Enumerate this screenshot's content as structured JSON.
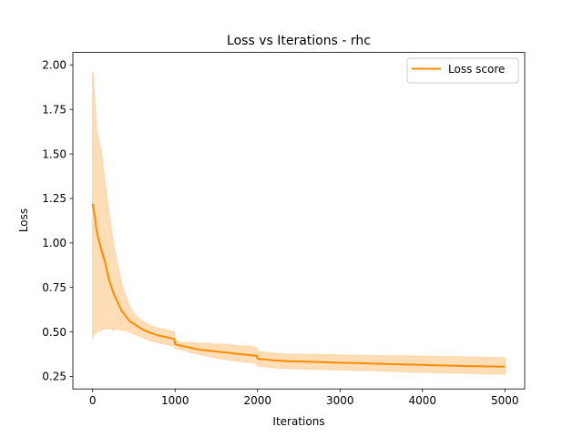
{
  "chart_data": {
    "type": "line",
    "title": "Loss vs Iterations - rhc",
    "xlabel": "Iterations",
    "ylabel": "Loss",
    "xlim": [
      -240,
      5240
    ],
    "ylim": [
      0.18,
      2.07
    ],
    "xticks": [
      0,
      1000,
      2000,
      3000,
      4000,
      5000
    ],
    "yticks": [
      0.25,
      0.5,
      0.75,
      1.0,
      1.25,
      1.5,
      1.75,
      2.0
    ],
    "grid": false,
    "legend_position": "top-right",
    "series": [
      {
        "name": "Loss score",
        "color": "#ff8c00",
        "band_color": "#ffd9ae",
        "x": [
          0,
          25,
          50,
          100,
          150,
          200,
          250,
          300,
          350,
          400,
          450,
          500,
          600,
          700,
          800,
          900,
          990,
          1000,
          1100,
          1200,
          1300,
          1400,
          1500,
          1600,
          1700,
          1800,
          1900,
          1990,
          2000,
          2100,
          2200,
          2400,
          2600,
          2800,
          3000,
          3200,
          3400,
          3600,
          3800,
          4000,
          4200,
          4400,
          4600,
          4800,
          5000
        ],
        "values": [
          1.22,
          1.15,
          1.06,
          0.97,
          0.89,
          0.79,
          0.72,
          0.67,
          0.62,
          0.59,
          0.56,
          0.545,
          0.515,
          0.495,
          0.48,
          0.47,
          0.46,
          0.43,
          0.42,
          0.41,
          0.4,
          0.395,
          0.39,
          0.385,
          0.38,
          0.375,
          0.37,
          0.365,
          0.35,
          0.345,
          0.34,
          0.335,
          0.333,
          0.33,
          0.327,
          0.325,
          0.322,
          0.32,
          0.317,
          0.315,
          0.312,
          0.31,
          0.308,
          0.306,
          0.305
        ],
        "band_upper": [
          1.96,
          1.8,
          1.62,
          1.52,
          1.33,
          1.16,
          0.99,
          0.88,
          0.77,
          0.7,
          0.64,
          0.6,
          0.56,
          0.535,
          0.52,
          0.51,
          0.5,
          0.45,
          0.44,
          0.44,
          0.435,
          0.435,
          0.43,
          0.43,
          0.425,
          0.42,
          0.42,
          0.41,
          0.39,
          0.385,
          0.38,
          0.375,
          0.373,
          0.372,
          0.37,
          0.368,
          0.367,
          0.365,
          0.364,
          0.363,
          0.362,
          0.36,
          0.358,
          0.357,
          0.355
        ],
        "band_lower": [
          0.47,
          0.49,
          0.5,
          0.51,
          0.52,
          0.52,
          0.51,
          0.52,
          0.51,
          0.51,
          0.5,
          0.49,
          0.47,
          0.45,
          0.44,
          0.43,
          0.42,
          0.41,
          0.4,
          0.385,
          0.375,
          0.365,
          0.355,
          0.345,
          0.34,
          0.335,
          0.33,
          0.325,
          0.31,
          0.305,
          0.3,
          0.295,
          0.293,
          0.29,
          0.288,
          0.285,
          0.283,
          0.28,
          0.277,
          0.275,
          0.272,
          0.27,
          0.268,
          0.265,
          0.263
        ]
      }
    ]
  }
}
